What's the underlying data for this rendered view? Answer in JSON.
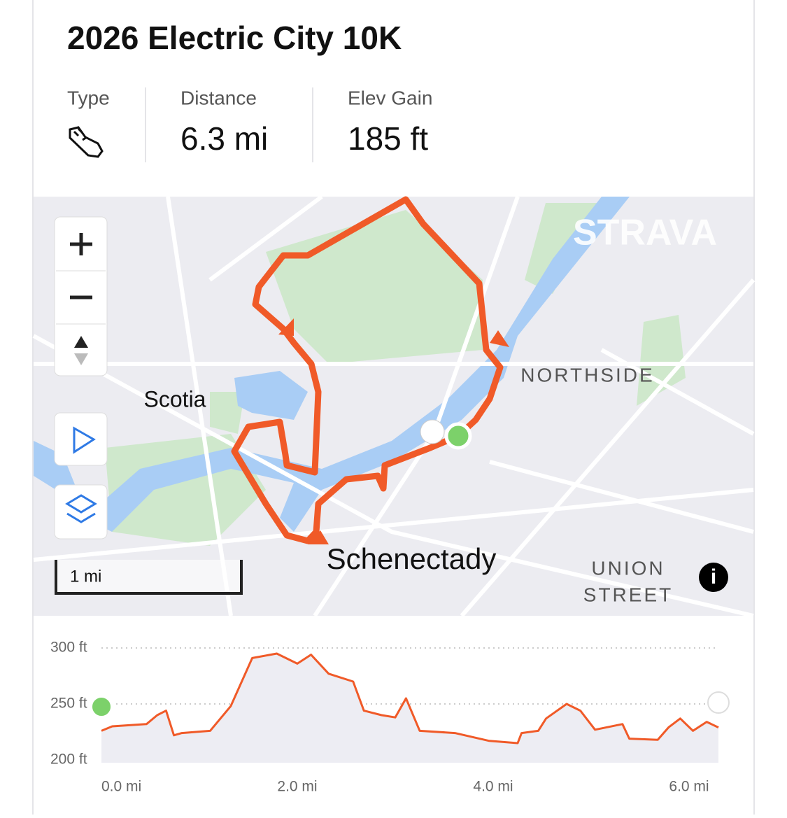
{
  "header": {
    "title": "2026 Electric City 10K"
  },
  "stats": [
    {
      "label": "Type"
    },
    {
      "label": "Distance",
      "value": "6.3 mi"
    },
    {
      "label": "Elev Gain",
      "value": "185 ft"
    }
  ],
  "map": {
    "watermark": "STRAVA",
    "labels": [
      "Scotia",
      "NORTHSIDE",
      "Schenectady",
      "UNION",
      "STREET"
    ],
    "scale": "1 mi"
  },
  "chart_data": {
    "type": "line",
    "color": "#f05a28",
    "x": [
      0.0,
      0.11,
      0.46,
      0.57,
      0.66,
      0.74,
      0.82,
      1.11,
      1.32,
      1.54,
      1.79,
      2.0,
      2.14,
      2.32,
      2.57,
      2.68,
      2.86,
      3.0,
      3.11,
      3.25,
      3.61,
      3.96,
      4.25,
      4.29,
      4.46,
      4.54,
      4.75,
      4.89,
      5.04,
      5.32,
      5.39,
      5.68,
      5.79,
      5.91,
      6.04,
      6.18,
      6.3
    ],
    "values": [
      226,
      230,
      232,
      240,
      244,
      222,
      224,
      226,
      248,
      291,
      295,
      286,
      294,
      277,
      270,
      244,
      240,
      238,
      255,
      226,
      224,
      217,
      215,
      224,
      226,
      237,
      250,
      244,
      227,
      232,
      219,
      218,
      229,
      237,
      226,
      234,
      229
    ],
    "xlim": [
      0,
      6.3
    ],
    "ylim": [
      200,
      300
    ],
    "yticks": [
      {
        "value": 300,
        "label": "300 ft"
      },
      {
        "value": 250,
        "label": "250 ft"
      },
      {
        "value": 200,
        "label": "200 ft"
      }
    ],
    "xticks": [
      {
        "value": 0,
        "label": "0.0 mi"
      },
      {
        "value": 2,
        "label": "2.0 mi"
      },
      {
        "value": 4,
        "label": "4.0 mi"
      },
      {
        "value": 6,
        "label": "6.0 mi"
      }
    ],
    "grid": true
  }
}
